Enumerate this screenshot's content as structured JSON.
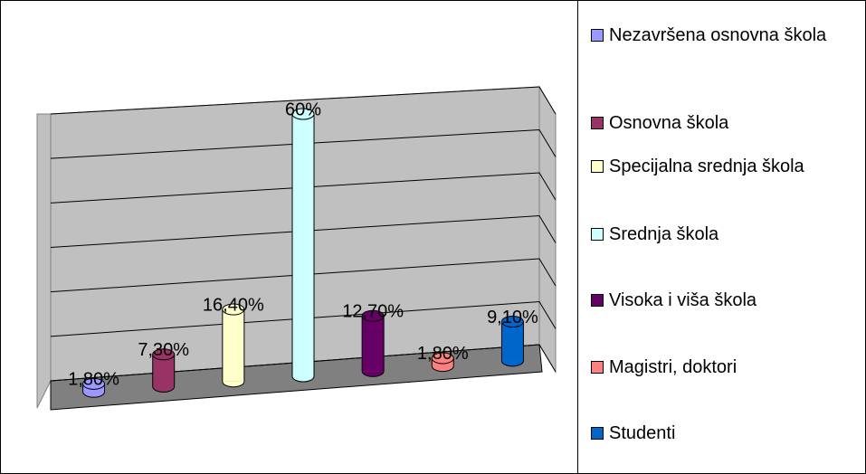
{
  "chart_data": {
    "type": "bar3d",
    "categories": [
      "Nezavršena osnovna škola",
      "Osnovna škola",
      "Specijalna srednja škola",
      "Srednja škola",
      "Visoka i viša škola",
      "Magistri, doktori",
      "Studenti"
    ],
    "values": [
      1.8,
      7.3,
      16.4,
      60,
      12.7,
      1.8,
      9.1
    ],
    "value_labels": [
      "1,80%",
      "7,30%",
      "16,40%",
      "60%",
      "12,70%",
      "1,80%",
      "9,10%"
    ],
    "colors": [
      "#9999ff",
      "#993366",
      "#ffffcc",
      "#ccffff",
      "#660066",
      "#ff8080",
      "#0066cc"
    ],
    "ylim": [
      0,
      60
    ],
    "yticks": [
      0,
      10,
      20,
      30,
      40,
      50,
      60
    ],
    "grid": true
  }
}
